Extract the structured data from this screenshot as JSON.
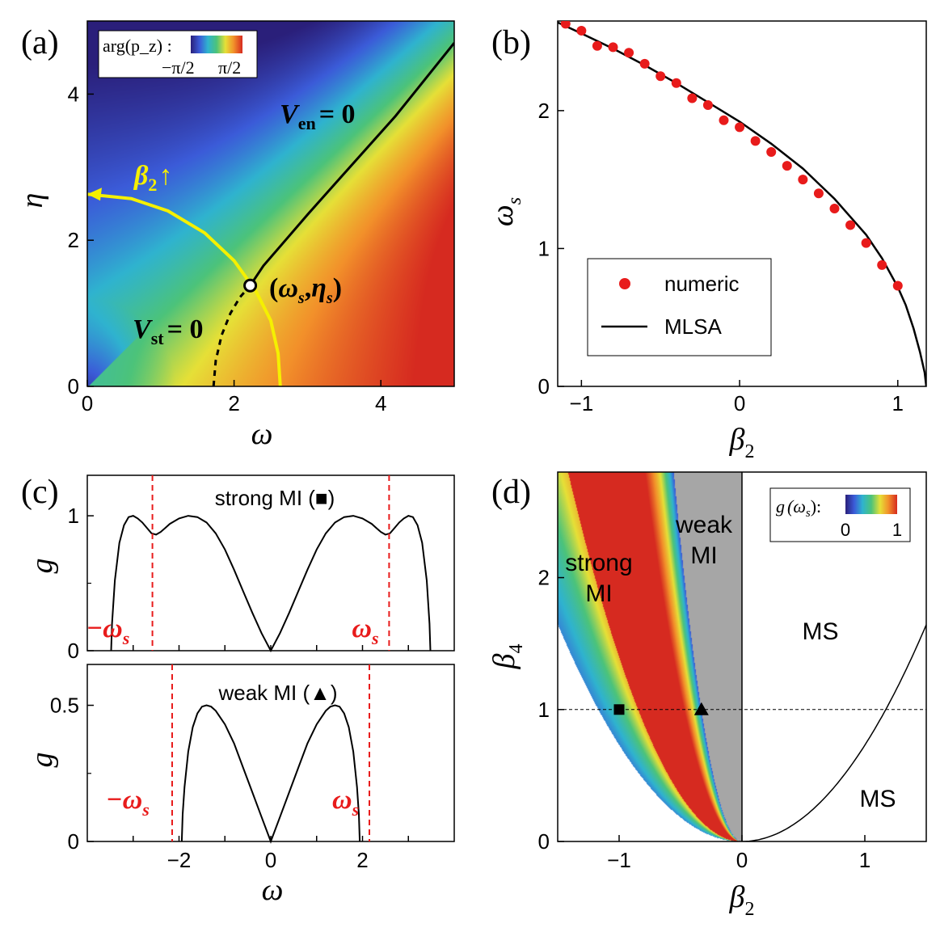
{
  "chart_data": [
    {
      "panel": "(a)",
      "type": "heatmap",
      "xlabel": "ω",
      "ylabel": "η",
      "xlim": [
        0,
        5
      ],
      "ylim": [
        0,
        5
      ],
      "xticks": [
        "0",
        "2",
        "4"
      ],
      "yticks": [
        "0",
        "2",
        "4"
      ],
      "colorbar": {
        "label": "arg(p_z) :",
        "min_label": "−π/2",
        "max_label": "π/2",
        "colors": [
          "#2a1f7a",
          "#3b5bd8",
          "#2fb3cf",
          "#4cc37a",
          "#e6e037",
          "#f2902a",
          "#d62a20"
        ]
      },
      "curves": [
        {
          "name": "V_en = 0",
          "style": "solid",
          "color": "#000000",
          "x": [
            2.22,
            2.4,
            2.7,
            3.0,
            3.4,
            3.8,
            4.2,
            4.6,
            5.0
          ],
          "y": [
            1.38,
            1.65,
            2.0,
            2.35,
            2.8,
            3.25,
            3.7,
            4.2,
            4.7
          ]
        },
        {
          "name": "V_st = 0",
          "style": "dashed",
          "color": "#000000",
          "x": [
            1.72,
            1.75,
            1.83,
            1.95,
            2.08,
            2.22
          ],
          "y": [
            0.0,
            0.35,
            0.7,
            1.0,
            1.22,
            1.38
          ]
        },
        {
          "name": "β2 arc",
          "style": "solid",
          "color": "#f5f000",
          "x": [
            2.63,
            2.6,
            2.5,
            2.3,
            2.0,
            1.6,
            1.1,
            0.6,
            0.0
          ],
          "y": [
            0.0,
            0.45,
            0.9,
            1.3,
            1.72,
            2.1,
            2.4,
            2.57,
            2.63
          ]
        }
      ],
      "point": {
        "x": 2.22,
        "y": 1.38,
        "label_pre": "(",
        "label_w": "ω",
        "label_ws": "s",
        "label_comma": ",",
        "label_e": "η",
        "label_es": "s",
        "label_post": ")"
      },
      "annotations": {
        "ven": "V",
        "ven_sub": "en",
        "ven_eq": "= 0",
        "vst": "V",
        "vst_sub": "st",
        "vst_eq": "= 0",
        "beta": "β",
        "beta_sub": "2",
        "arrow": "↑"
      }
    },
    {
      "panel": "(b)",
      "type": "scatter",
      "xlabel": "β",
      "xlabel_sub": "2",
      "ylabel": "ω",
      "ylabel_sub": "s",
      "xlim": [
        -1.15,
        1.18
      ],
      "ylim": [
        0,
        2.65
      ],
      "xticks": [
        -1,
        0,
        1
      ],
      "yticks": [
        0,
        1,
        2
      ],
      "xtick_labels": [
        "−1",
        "0",
        "1"
      ],
      "ytick_labels": [
        "0",
        "1",
        "2"
      ],
      "series": [
        {
          "name": "numeric",
          "type": "scatter",
          "color": "#e81b1b",
          "x": [
            -1.1,
            -1.0,
            -0.9,
            -0.8,
            -0.7,
            -0.6,
            -0.5,
            -0.4,
            -0.3,
            -0.2,
            -0.1,
            0.0,
            0.1,
            0.2,
            0.3,
            0.4,
            0.5,
            0.6,
            0.7,
            0.8,
            0.9,
            1.0
          ],
          "y": [
            2.63,
            2.58,
            2.47,
            2.46,
            2.42,
            2.34,
            2.25,
            2.2,
            2.09,
            2.04,
            1.93,
            1.88,
            1.78,
            1.7,
            1.6,
            1.5,
            1.4,
            1.29,
            1.17,
            1.04,
            0.88,
            0.73
          ]
        },
        {
          "name": "MLSA",
          "type": "line",
          "color": "#000000",
          "x": [
            -1.15,
            -1.0,
            -0.8,
            -0.6,
            -0.4,
            -0.2,
            0.0,
            0.2,
            0.4,
            0.6,
            0.8,
            0.9,
            1.0,
            1.05,
            1.1,
            1.14,
            1.17,
            1.18
          ],
          "y": [
            2.64,
            2.56,
            2.45,
            2.33,
            2.2,
            2.06,
            1.92,
            1.76,
            1.58,
            1.36,
            1.1,
            0.93,
            0.72,
            0.59,
            0.42,
            0.25,
            0.1,
            0.0
          ]
        }
      ]
    },
    {
      "panel": "(c) top",
      "type": "line",
      "title": "strong MI (■)",
      "ylabel": "g",
      "xlim": [
        -4.0,
        4.0
      ],
      "ylim": [
        0,
        1.3
      ],
      "yticks": [
        0,
        1
      ],
      "ytick_labels": [
        "0",
        "1"
      ],
      "vlines": [
        -2.58,
        2.58
      ],
      "vline_labels": [
        "−ω",
        "ω"
      ],
      "vline_sub": "s",
      "series": [
        {
          "name": "g",
          "color": "#000000",
          "x": [
            -3.48,
            -3.46,
            -3.4,
            -3.3,
            -3.2,
            -3.1,
            -3.0,
            -2.9,
            -2.8,
            -2.7,
            -2.6,
            -2.5,
            -2.4,
            -2.3,
            -2.2,
            -2.0,
            -1.8,
            -1.6,
            -1.4,
            -1.2,
            -1.0,
            -0.8,
            -0.6,
            -0.4,
            -0.2,
            0.0,
            0.2,
            0.4,
            0.6,
            0.8,
            1.0,
            1.2,
            1.4,
            1.6,
            1.8,
            2.0,
            2.2,
            2.3,
            2.4,
            2.5,
            2.6,
            2.7,
            2.8,
            2.9,
            3.0,
            3.1,
            3.2,
            3.3,
            3.4,
            3.46,
            3.48
          ],
          "y": [
            0.0,
            0.2,
            0.52,
            0.8,
            0.93,
            0.99,
            1.0,
            0.98,
            0.95,
            0.91,
            0.87,
            0.86,
            0.88,
            0.91,
            0.94,
            0.98,
            1.0,
            0.99,
            0.95,
            0.87,
            0.75,
            0.6,
            0.44,
            0.28,
            0.13,
            0.0,
            0.13,
            0.28,
            0.44,
            0.6,
            0.75,
            0.87,
            0.95,
            0.99,
            1.0,
            0.98,
            0.94,
            0.91,
            0.88,
            0.86,
            0.87,
            0.91,
            0.95,
            0.98,
            1.0,
            0.99,
            0.93,
            0.8,
            0.52,
            0.2,
            0.0
          ]
        }
      ]
    },
    {
      "panel": "(c) bottom",
      "type": "line",
      "title": "weak MI (▲)",
      "xlabel": "ω",
      "ylabel": "g",
      "xlim": [
        -4.0,
        4.0
      ],
      "ylim": [
        0,
        0.65
      ],
      "xticks": [
        -2,
        0,
        2
      ],
      "xtick_labels": [
        "−2",
        "0",
        "2"
      ],
      "yticks": [
        0,
        0.5
      ],
      "ytick_labels": [
        "0",
        "0.5"
      ],
      "vlines": [
        -2.15,
        2.15
      ],
      "vline_labels": [
        "−ω",
        "ω"
      ],
      "vline_sub": "s",
      "series": [
        {
          "name": "g",
          "color": "#000000",
          "x": [
            -1.94,
            -1.92,
            -1.88,
            -1.8,
            -1.7,
            -1.6,
            -1.5,
            -1.4,
            -1.3,
            -1.2,
            -1.0,
            -0.8,
            -0.6,
            -0.4,
            -0.2,
            0.0,
            0.2,
            0.4,
            0.6,
            0.8,
            1.0,
            1.2,
            1.3,
            1.4,
            1.5,
            1.6,
            1.7,
            1.8,
            1.88,
            1.92,
            1.94
          ],
          "y": [
            0.0,
            0.1,
            0.2,
            0.33,
            0.42,
            0.47,
            0.495,
            0.5,
            0.495,
            0.48,
            0.43,
            0.36,
            0.27,
            0.18,
            0.09,
            0.0,
            0.09,
            0.18,
            0.27,
            0.36,
            0.43,
            0.48,
            0.495,
            0.5,
            0.495,
            0.47,
            0.42,
            0.33,
            0.2,
            0.1,
            0.0
          ]
        }
      ]
    },
    {
      "panel": "(d)",
      "type": "heatmap",
      "xlabel": "β",
      "xlabel_sub": "2",
      "ylabel": "β",
      "ylabel_sub": "4",
      "xlim": [
        -1.5,
        1.5
      ],
      "ylim": [
        0,
        2.8
      ],
      "xticks": [
        -1,
        0,
        1
      ],
      "xtick_labels": [
        "−1",
        "0",
        "1"
      ],
      "yticks": [
        0,
        1,
        2
      ],
      "ytick_labels": [
        "0",
        "1",
        "2"
      ],
      "colorbar": {
        "label_g": "g",
        "label_arg": "(ω",
        "label_sub": "s",
        "label_close": "):",
        "min_label": "0",
        "max_label": "1"
      },
      "regions": {
        "strong": [
          "strong",
          "MI"
        ],
        "weak": [
          "weak",
          "MI"
        ],
        "ms1": "MS",
        "ms2": "MS"
      },
      "boundaries": [
        {
          "name": "strong/weak MI boundary",
          "relation": "β4 = 0.5·β2²·1.46"
        },
        {
          "name": "MS parabola",
          "relation": "β4 = 1.5·β2²·0.5"
        }
      ],
      "reference_line": {
        "beta4": 1.0
      },
      "markers": [
        {
          "symbol": "square",
          "x": -1.0,
          "y": 1.0
        },
        {
          "symbol": "triangle",
          "x": -0.33,
          "y": 1.0
        }
      ],
      "legend": {
        "numeric": "numeric",
        "mlsa": "MLSA"
      }
    }
  ],
  "panel_labels": [
    "(a)",
    "(b)",
    "(c)",
    "(d)"
  ]
}
